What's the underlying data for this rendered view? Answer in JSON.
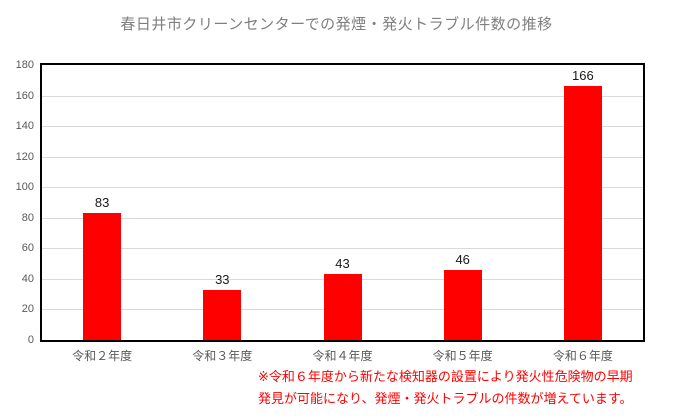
{
  "title": "春日井市クリーンセンターでの発煙・発火トラブル件数の推移",
  "note": {
    "line1": "※令和６年度から新たな検知器の設置により発火性危険物の早期",
    "line2": "発見が可能になり、発煙・発火トラブルの件数が増えています。"
  },
  "colors": {
    "bar": "#ff0000",
    "note_text": "#ff0000",
    "title_text": "#7f7f7f",
    "axis_label_text": "#595959",
    "value_label_text": "#1a1a1a",
    "gridline": "#d9d9d9",
    "plot_border": "#000000",
    "background": "#ffffff"
  },
  "chart_data": {
    "type": "bar",
    "title": "春日井市クリーンセンターでの発煙・発火トラブル件数の推移",
    "categories": [
      "令和２年度",
      "令和３年度",
      "令和４年度",
      "令和５年度",
      "令和６年度"
    ],
    "values": [
      83,
      33,
      43,
      46,
      166
    ],
    "xlabel": "",
    "ylabel": "",
    "ylim": [
      0,
      180
    ],
    "yticks": [
      0,
      20,
      40,
      60,
      80,
      100,
      120,
      140,
      160,
      180
    ],
    "grid": true,
    "legend": "none",
    "data_labels": true,
    "bar_color": "#ff0000",
    "annotation": "※令和６年度から新たな検知器の設置により発火性危険物の早期発見が可能になり、発煙・発火トラブルの件数が増えています。"
  }
}
